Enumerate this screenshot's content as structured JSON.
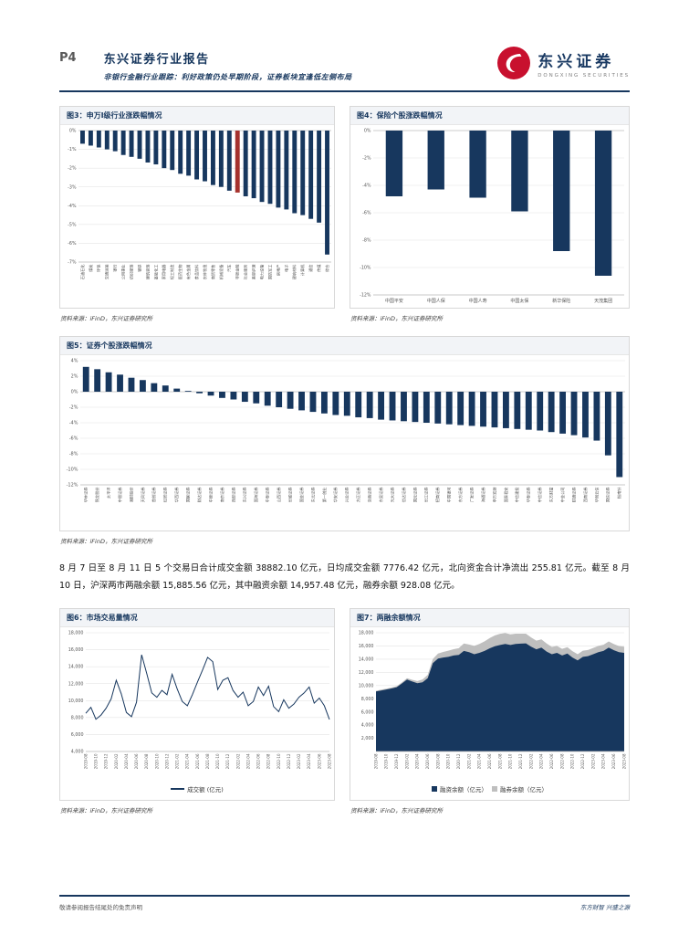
{
  "page": {
    "page_number": "P4",
    "report_title": "东兴证券行业报告",
    "report_subtitle": "非银行金融行业跟踪：利好政策仍处早期阶段，证券板块宜逢低左侧布局",
    "brand_name": "东兴证券",
    "brand_name_en": "DONGXING SECURITIES",
    "source_note": "资料来源：iFinD，东兴证券研究所",
    "body_paragraph": "8 月 7 日至 8 月 11 日 5 个交易日合计成交金额 38882.10 亿元，日均成交金额 7776.42 亿元，北向资金合计净流出 255.81 亿元。截至 8 月 10 日，沪深两市两融余额 15,885.56 亿元，其中融资余额 14,957.48 亿元，融券余额 928.08 亿元。",
    "footer_left": "敬请参阅报告结尾处的免责声明",
    "footer_right": "东方财智 兴盛之源",
    "colors": {
      "navy": "#17375E",
      "highlight_red": "#A6322E",
      "gray": "#BFBFBF",
      "logo_red": "#C8102E"
    }
  },
  "chart_data": [
    {
      "id": "fig3",
      "type": "bar",
      "title": "图3：申万Ⅰ级行业涨跌幅情况",
      "categories": [
        "石油石化",
        "煤炭",
        "环保",
        "交通运输",
        "银行",
        "公用事业",
        "纺织服饰",
        "钢铁",
        "建筑装饰",
        "基础化工",
        "家用电器",
        "轻工制造",
        "医药生物",
        "有色金属",
        "食品饮料",
        "农林牧渔",
        "商贸零售",
        "机械设备",
        "汽车",
        "非银金融",
        "社会服务",
        "美容护理",
        "电力设备",
        "国防军工",
        "房地产",
        "电子",
        "建筑材料",
        "计算机",
        "通信",
        "传媒",
        "综合"
      ],
      "values": [
        -0.7,
        -0.8,
        -0.9,
        -1.0,
        -1.1,
        -1.3,
        -1.4,
        -1.5,
        -1.7,
        -1.8,
        -2.0,
        -2.1,
        -2.3,
        -2.4,
        -2.6,
        -2.7,
        -2.9,
        -3.0,
        -3.2,
        -3.3,
        -3.5,
        -3.6,
        -3.8,
        -3.9,
        -4.1,
        -4.2,
        -4.4,
        -4.5,
        -4.7,
        -4.9,
        -6.6
      ],
      "ylim": [
        -7,
        0
      ],
      "yticks": [
        0,
        -1,
        -2,
        -3,
        -4,
        -5,
        -6,
        -7
      ],
      "fmt": "pct",
      "color": "#17375E",
      "highlight_index": 19,
      "highlight_color": "#A6322E"
    },
    {
      "id": "fig4",
      "type": "bar",
      "title": "图4：保险个股涨跌幅情况",
      "categories": [
        "中国平安",
        "中国人保",
        "中国人寿",
        "中国太保",
        "新华保险",
        "天茂集团"
      ],
      "values": [
        -4.8,
        -4.3,
        -4.9,
        -5.9,
        -8.8,
        -10.6
      ],
      "ylim": [
        -12,
        0
      ],
      "yticks": [
        0,
        -2,
        -4,
        -6,
        -8,
        -10,
        -12
      ],
      "fmt": "pct",
      "color": "#17375E"
    },
    {
      "id": "fig5",
      "type": "bar",
      "title": "图5：证券个股涨跌幅情况",
      "categories": [
        "华林证券",
        "锦龙股份",
        "太平洋",
        "中银证券",
        "湘财股份",
        "天风证券",
        "首创证券",
        "红塔证券",
        "华西证券",
        "国联证券",
        "财达证券",
        "中原证券",
        "南京证券",
        "西部证券",
        "东兴证券",
        "国海证券",
        "中泰证券",
        "山西证券",
        "长城证券",
        "国金证券",
        "东北证券",
        "第一创业",
        "华安证券",
        "兴业证券",
        "方正证券",
        "浙商证券",
        "东吴证券",
        "光大证券",
        "信达证券",
        "国元证券",
        "长江证券",
        "招商证券",
        "中国银河",
        "东方证券",
        "广发证券",
        "海通证券",
        "申万宏源",
        "国泰君安",
        "中信建投",
        "华泰证券",
        "中信证券",
        "东方财富",
        "中金公司",
        "财通证券",
        "西南证券",
        "华创云信",
        "国信证券",
        "指南针"
      ],
      "values": [
        3.2,
        2.9,
        2.5,
        2.2,
        1.8,
        1.5,
        1.1,
        0.8,
        0.4,
        0.1,
        -0.2,
        -0.5,
        -0.8,
        -1.0,
        -1.3,
        -1.5,
        -1.8,
        -2.0,
        -2.2,
        -2.4,
        -2.6,
        -2.8,
        -3.0,
        -3.1,
        -3.3,
        -3.4,
        -3.6,
        -3.7,
        -3.8,
        -3.9,
        -4.0,
        -4.1,
        -4.2,
        -4.3,
        -4.4,
        -4.5,
        -4.6,
        -4.7,
        -4.8,
        -4.9,
        -5.0,
        -5.2,
        -5.4,
        -5.6,
        -5.9,
        -6.3,
        -8.2,
        -11.0
      ],
      "ylim": [
        -12,
        4
      ],
      "yticks": [
        4,
        2,
        0,
        -2,
        -4,
        -6,
        -8,
        -10,
        -12
      ],
      "fmt": "pct",
      "color": "#17375E"
    },
    {
      "id": "fig6",
      "type": "line",
      "title": "图6：市场交易量情况",
      "legend": [
        "成交额 (亿元)"
      ],
      "categories": [
        "2019-08",
        "2019-09",
        "2019-10",
        "2019-11",
        "2019-12",
        "2020-01",
        "2020-02",
        "2020-03",
        "2020-04",
        "2020-05",
        "2020-06",
        "2020-07",
        "2020-08",
        "2020-09",
        "2020-10",
        "2020-11",
        "2020-12",
        "2021-01",
        "2021-02",
        "2021-03",
        "2021-04",
        "2021-05",
        "2021-06",
        "2021-07",
        "2021-08",
        "2021-09",
        "2021-10",
        "2021-11",
        "2021-12",
        "2022-01",
        "2022-02",
        "2022-03",
        "2022-04",
        "2022-05",
        "2022-06",
        "2022-07",
        "2022-08",
        "2022-09",
        "2022-10",
        "2022-11",
        "2022-12",
        "2023-01",
        "2023-02",
        "2023-03",
        "2023-04",
        "2023-05",
        "2023-06",
        "2023-07",
        "2023-08"
      ],
      "values": [
        8500,
        9200,
        7800,
        8300,
        9100,
        10200,
        12400,
        10800,
        8600,
        8100,
        9800,
        15400,
        13200,
        10900,
        10400,
        11200,
        10700,
        13100,
        11400,
        9900,
        9400,
        10700,
        12200,
        13600,
        15100,
        14600,
        11300,
        12400,
        12700,
        11200,
        10400,
        11000,
        9400,
        9900,
        11600,
        10600,
        11700,
        9300,
        8700,
        10100,
        9100,
        9600,
        10400,
        10900,
        11600,
        9700,
        10300,
        9400,
        7776
      ],
      "ylim": [
        4000,
        18000
      ],
      "yticks": [
        4000,
        6000,
        8000,
        10000,
        12000,
        14000,
        16000,
        18000
      ],
      "fmt": "num",
      "color": "#17375E"
    },
    {
      "id": "fig7",
      "type": "area",
      "title": "图7：两融余额情况",
      "legend": [
        "融资余额（亿元）",
        "融券余额（亿元）"
      ],
      "categories": [
        "2019-08",
        "2019-09",
        "2019-10",
        "2019-11",
        "2019-12",
        "2020-01",
        "2020-02",
        "2020-03",
        "2020-04",
        "2020-05",
        "2020-06",
        "2020-07",
        "2020-08",
        "2020-09",
        "2020-10",
        "2020-11",
        "2020-12",
        "2021-01",
        "2021-02",
        "2021-03",
        "2021-04",
        "2021-05",
        "2021-06",
        "2021-07",
        "2021-08",
        "2021-09",
        "2021-10",
        "2021-11",
        "2021-12",
        "2022-01",
        "2022-02",
        "2022-03",
        "2022-04",
        "2022-05",
        "2022-06",
        "2022-07",
        "2022-08",
        "2022-09",
        "2022-10",
        "2022-11",
        "2022-12",
        "2023-01",
        "2023-02",
        "2023-03",
        "2023-04",
        "2023-05",
        "2023-06",
        "2023-07",
        "2023-08"
      ],
      "series": [
        {
          "name": "融资余额（亿元）",
          "color": "#17375E",
          "values": [
            9100,
            9250,
            9400,
            9550,
            9750,
            10300,
            10900,
            10600,
            10350,
            10500,
            11100,
            13400,
            14100,
            14250,
            14350,
            14550,
            14650,
            15250,
            15050,
            14750,
            14950,
            15250,
            15650,
            15950,
            16150,
            16300,
            16150,
            16300,
            16350,
            16400,
            15900,
            15500,
            15750,
            15150,
            14750,
            14950,
            14550,
            14850,
            14250,
            13800,
            14350,
            14450,
            14750,
            15050,
            15250,
            15750,
            15350,
            15050,
            14957
          ]
        },
        {
          "name": "融券余额（亿元）",
          "color": "#BFBFBF",
          "values": [
            100,
            120,
            130,
            140,
            150,
            170,
            220,
            270,
            320,
            420,
            520,
            630,
            740,
            840,
            940,
            960,
            1010,
            1120,
            1170,
            1250,
            1350,
            1450,
            1550,
            1650,
            1700,
            1660,
            1620,
            1560,
            1510,
            1460,
            1400,
            1310,
            1260,
            1210,
            1110,
            1060,
            1010,
            980,
            960,
            950,
            940,
            930,
            950,
            960,
            940,
            935,
            930,
            930,
            928
          ]
        }
      ],
      "ylim": [
        0,
        18000
      ],
      "yticks": [
        2000,
        4000,
        6000,
        8000,
        10000,
        12000,
        14000,
        16000,
        18000
      ],
      "fmt": "num"
    }
  ]
}
